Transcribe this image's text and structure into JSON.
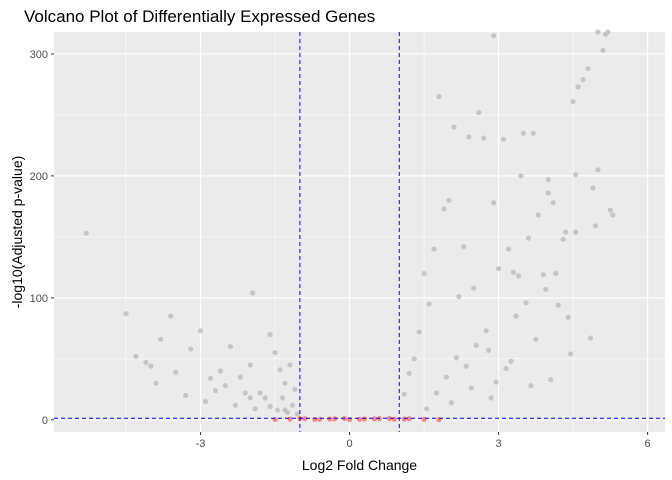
{
  "chart_data": {
    "type": "scatter",
    "title": "Volcano Plot of Differentially Expressed Genes",
    "xlabel": "Log2 Fold Change",
    "ylabel": "-log10(Adjusted p-value)",
    "xlim": [
      -5.95,
      6.35
    ],
    "ylim": [
      -10,
      318
    ],
    "x_ticks": [
      -3,
      0,
      3,
      6
    ],
    "x_tick_labels": [
      "-3",
      "0",
      "3",
      "6"
    ],
    "y_ticks": [
      0,
      100,
      200,
      300
    ],
    "y_tick_labels": [
      "0",
      "100",
      "200",
      "300"
    ],
    "grid": true,
    "legend": "none",
    "thresholds": {
      "vlines": [
        -1,
        1
      ],
      "hline": 1.3
    },
    "colors": {
      "significant": "#bebebe",
      "not_significant": "#f8766d",
      "threshold": "#0000ff",
      "panel": "#ebebeb",
      "grid": "#ffffff"
    },
    "series": [
      {
        "group": "significant",
        "x": [
          -5.3,
          -4.5,
          -4.3,
          -4.1,
          -3.8,
          -3.6,
          -3.2,
          -3.0,
          -2.6,
          -2.4,
          -2.2,
          -2.0,
          -1.95,
          -1.8,
          -1.6,
          -1.5,
          -1.4,
          -1.3,
          -1.2,
          -1.1,
          -4.0,
          -3.5,
          -2.8,
          -2.5,
          -2.1,
          -1.7,
          -1.35,
          -1.15,
          -3.3,
          -2.9,
          -2.3,
          -1.9,
          -1.45,
          -1.25,
          -3.9,
          -2.7,
          -2.0,
          -1.6,
          -1.3,
          -1.05,
          1.1,
          1.2,
          1.3,
          1.4,
          1.5,
          1.6,
          1.7,
          1.8,
          1.9,
          2.0,
          2.1,
          2.2,
          2.3,
          2.4,
          2.5,
          2.6,
          2.7,
          2.8,
          2.9,
          3.0,
          3.1,
          3.2,
          3.3,
          3.4,
          3.5,
          3.6,
          3.7,
          3.8,
          3.9,
          4.0,
          4.1,
          4.2,
          4.3,
          4.4,
          4.5,
          4.6,
          4.7,
          4.8,
          4.9,
          5.0,
          5.1,
          5.2,
          5.3,
          1.75,
          1.95,
          2.15,
          2.35,
          2.55,
          2.75,
          2.95,
          3.15,
          3.35,
          3.55,
          3.75,
          3.95,
          4.15,
          4.35,
          4.55,
          1.55,
          2.05,
          2.45,
          2.85,
          3.25,
          3.65,
          4.05,
          4.45,
          4.85,
          5.25,
          2.9,
          3.45,
          4.0,
          4.55,
          4.95,
          5.15,
          5.0
        ],
        "y": [
          153,
          87,
          52,
          47,
          66,
          85,
          58,
          73,
          40,
          60,
          35,
          45,
          104,
          22,
          70,
          55,
          41,
          30,
          45,
          25,
          44,
          39,
          34,
          28,
          22,
          18,
          18,
          12,
          20,
          15,
          12,
          9,
          8,
          6,
          30,
          24,
          18,
          11,
          8,
          5,
          21,
          38,
          50,
          72,
          120,
          95,
          140,
          265,
          173,
          180,
          240,
          101,
          142,
          232,
          108,
          252,
          231,
          57,
          315,
          124,
          230,
          140,
          121,
          118,
          235,
          149,
          235,
          168,
          119,
          186,
          178,
          94,
          148,
          84,
          261,
          273,
          279,
          288,
          190,
          205,
          303,
          318,
          168,
          22,
          35,
          51,
          44,
          61,
          73,
          31,
          42,
          85,
          96,
          66,
          107,
          120,
          154,
          201,
          9,
          14,
          26,
          18,
          48,
          28,
          33,
          54,
          67,
          172,
          178,
          200,
          197,
          154,
          159,
          316,
          318
        ]
      },
      {
        "group": "not_significant",
        "x": [
          -1.5,
          -1.2,
          -0.9,
          -0.6,
          -0.3,
          0.0,
          0.3,
          0.6,
          0.9,
          1.2,
          1.5,
          1.8,
          -1.0,
          -0.7,
          -0.4,
          -0.1,
          0.2,
          0.5,
          0.8,
          1.1
        ],
        "y": [
          0.3,
          0.6,
          0.9,
          0.4,
          0.8,
          0.2,
          0.7,
          1.0,
          0.5,
          0.9,
          0.4,
          0.2,
          1.1,
          0.3,
          0.6,
          1.0,
          0.4,
          0.8,
          1.1,
          0.6
        ]
      }
    ]
  }
}
